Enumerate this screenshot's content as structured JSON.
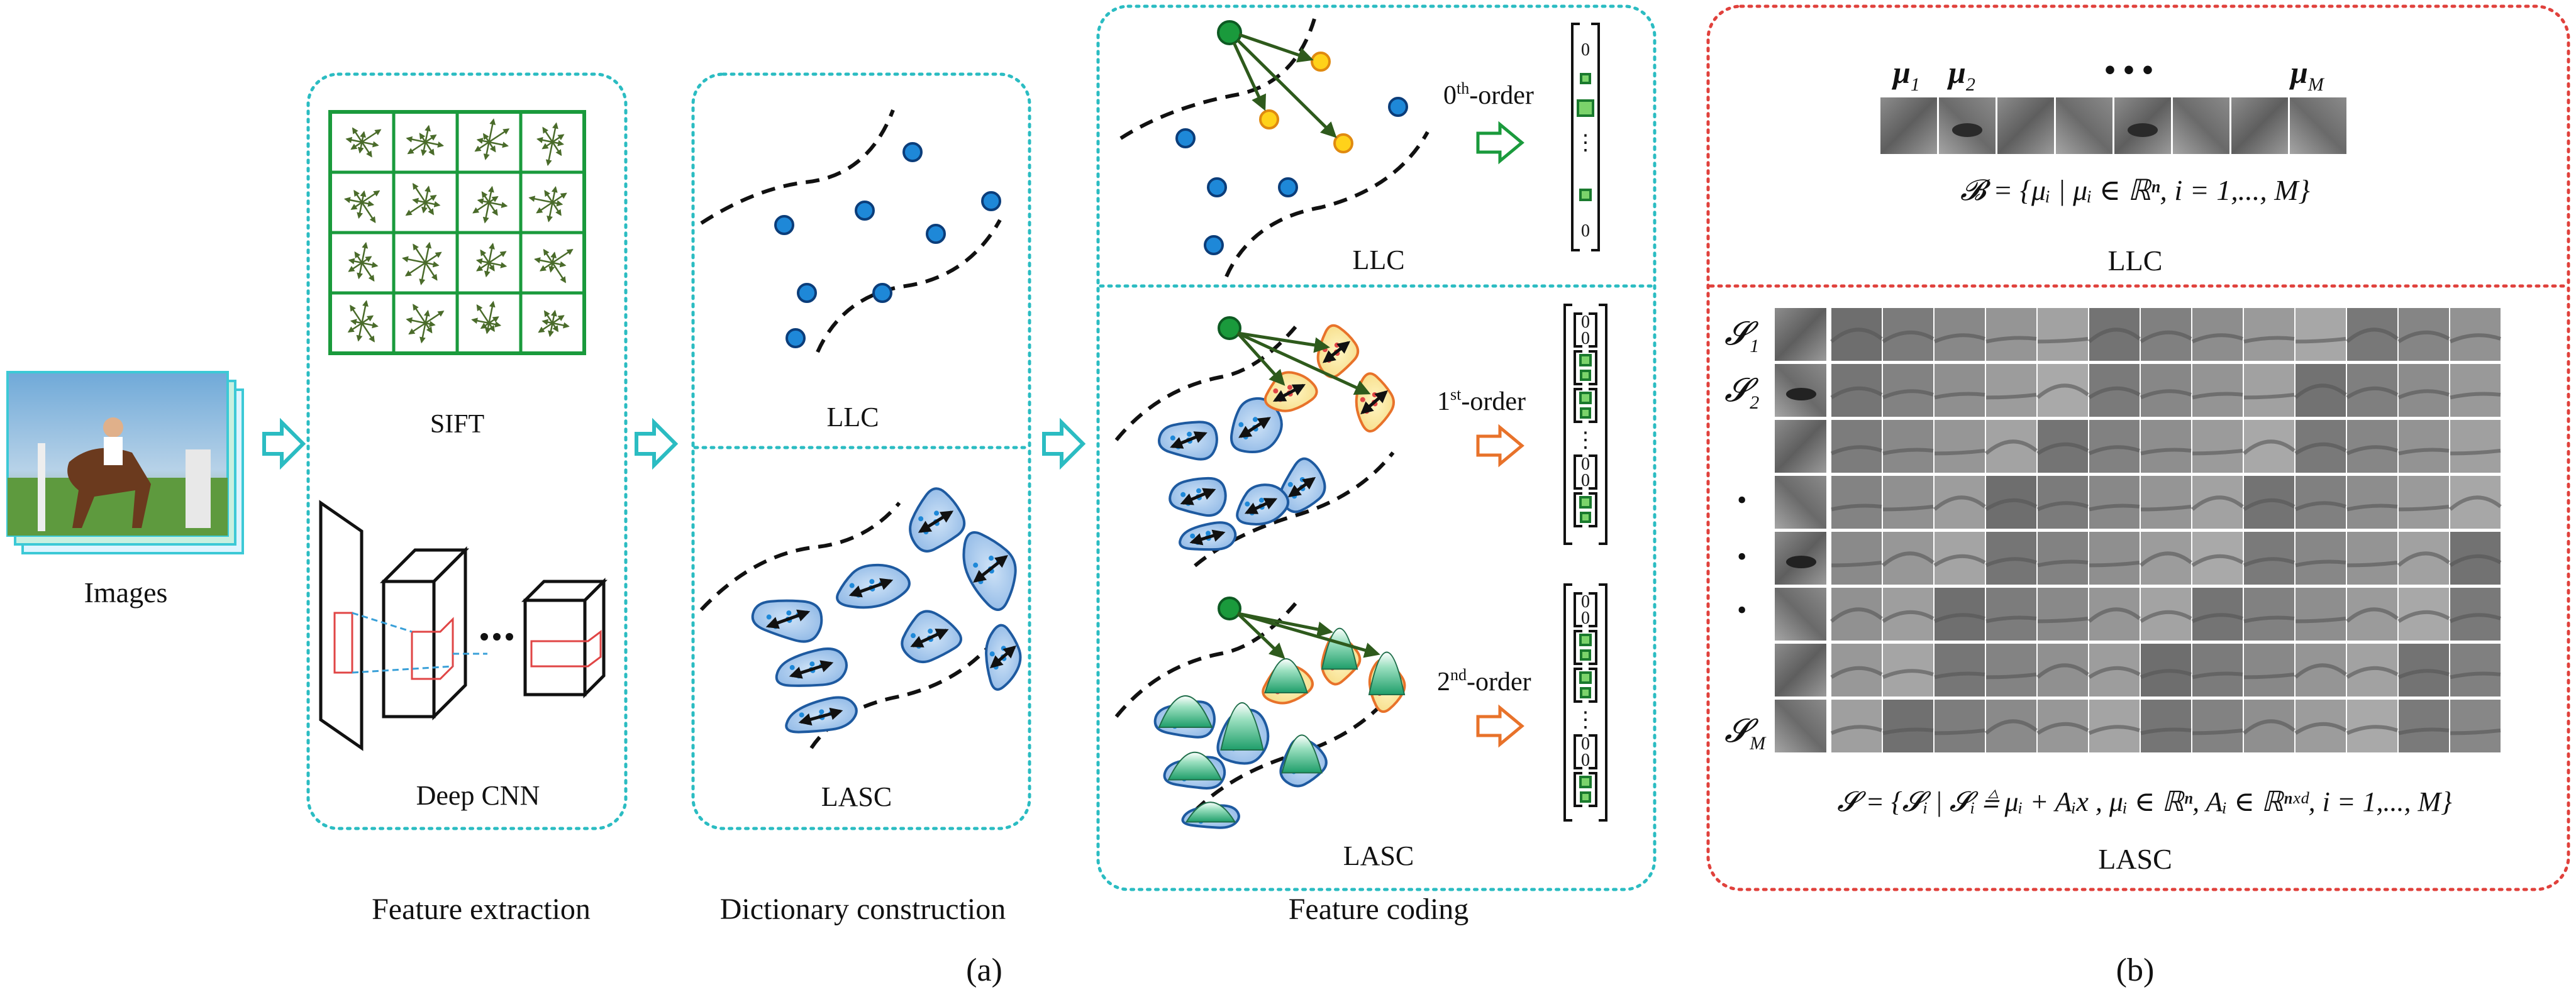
{
  "panel_a": {
    "images_label": "Images",
    "stage_labels": {
      "extraction": "Feature extraction",
      "dictionary": "Dictionary construction",
      "coding": "Feature coding"
    },
    "sift_label": "SIFT",
    "cnn_label": "Deep CNN",
    "llc_label": "LLC",
    "lasc_label": "LASC",
    "order0": {
      "base": "0",
      "sup": "th",
      "rest": "-order"
    },
    "order1": {
      "base": "1",
      "sup": "st",
      "rest": "-order"
    },
    "order2": {
      "base": "2",
      "sup": "nd",
      "rest": "-order"
    },
    "vec_digit": "0",
    "ellipsis_dots": "…",
    "caption": "(a)"
  },
  "panel_b": {
    "mu1": "μ",
    "mu1_sub": "1",
    "mu2": "μ",
    "mu2_sub": "2",
    "mu_dots": "• • •",
    "muM": "μ",
    "muM_sub": "M",
    "llc_formula": "𝓑 = {μᵢ | μᵢ ∈ ℝⁿ, i = 1,..., M}",
    "llc_label": "LLC",
    "s1": "𝓢",
    "s1_sub": "1",
    "s2": "𝓢",
    "s2_sub": "2",
    "sM": "𝓢",
    "sM_sub": "M",
    "vdots": "•",
    "lasc_formula": "𝓢 = {𝓢ᵢ | 𝓢ᵢ ≜ μᵢ + Aᵢx , μᵢ ∈ ℝⁿ, Aᵢ ∈ ℝⁿˣᵈ, i = 1,..., M}",
    "lasc_label": "LASC",
    "caption": "(b)"
  },
  "colors": {
    "teal_border": "#2bbcc2",
    "red_border": "#e0413c",
    "green": "#1a9a3c",
    "blue_dot": "#1e88d8",
    "orange": "#e8722a",
    "yellow": "#f4d13a"
  }
}
